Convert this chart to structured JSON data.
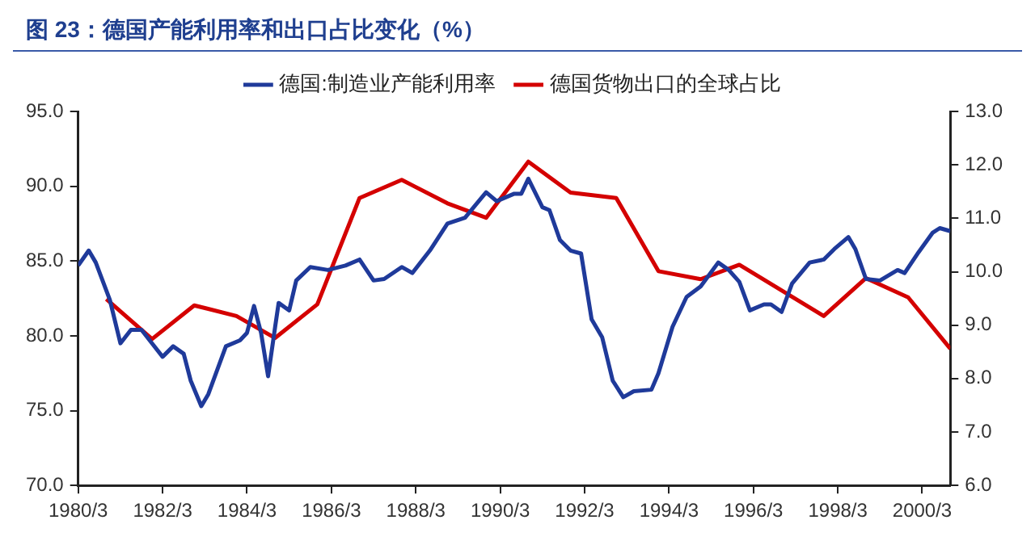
{
  "chart_data": {
    "type": "line",
    "title": "图 23：德国产能利用率和出口占比变化（%）",
    "series": [
      {
        "name": "德国:制造业产能利用率",
        "color": "#1f3a9a",
        "axis": "y",
        "x": [
          "1980-03",
          "1980-06",
          "1980-08",
          "1980-12",
          "1981-03",
          "1981-06",
          "1981-09",
          "1981-12",
          "1982-03",
          "1982-06",
          "1982-09",
          "1982-11",
          "1983-02",
          "1983-04",
          "1983-09",
          "1984-01",
          "1984-03",
          "1984-05",
          "1984-07",
          "1984-09",
          "1984-11",
          "1984-12",
          "1985-03",
          "1985-05",
          "1985-09",
          "1986-02",
          "1986-07",
          "1986-11",
          "1987-03",
          "1987-06",
          "1987-11",
          "1988-02",
          "1988-07",
          "1988-12",
          "1989-05",
          "1989-11",
          "1990-02",
          "1990-07",
          "1990-09",
          "1990-11",
          "1991-03",
          "1991-05",
          "1991-08",
          "1991-11",
          "1992-02",
          "1992-05",
          "1992-08",
          "1992-11",
          "1993-02",
          "1993-05",
          "1993-10",
          "1993-12",
          "1994-04",
          "1994-08",
          "1994-12",
          "1995-05",
          "1995-08",
          "1995-11",
          "1996-02",
          "1996-06",
          "1996-08",
          "1996-11",
          "1997-02",
          "1997-07",
          "1997-11",
          "1998-02",
          "1998-06",
          "1998-08",
          "1998-11",
          "1999-03",
          "1999-08",
          "1999-10",
          "2000-02",
          "2000-06",
          "2000-08",
          "2000-11"
        ],
        "values": [
          84.7,
          85.7,
          84.9,
          82.4,
          79.5,
          80.4,
          80.4,
          79.5,
          78.6,
          79.3,
          78.8,
          77.0,
          75.3,
          76.1,
          79.3,
          79.7,
          80.2,
          82.0,
          80.2,
          77.3,
          80.6,
          82.2,
          81.7,
          83.7,
          84.6,
          84.4,
          84.7,
          85.1,
          83.7,
          83.8,
          84.6,
          84.2,
          85.7,
          87.5,
          87.9,
          89.6,
          89.0,
          89.5,
          89.5,
          90.5,
          88.6,
          88.4,
          86.4,
          85.7,
          85.5,
          81.1,
          79.9,
          77.0,
          75.9,
          76.3,
          76.4,
          77.5,
          80.6,
          82.6,
          83.3,
          84.9,
          84.4,
          83.6,
          81.7,
          82.1,
          82.1,
          81.6,
          83.5,
          84.9,
          85.1,
          85.8,
          86.6,
          85.8,
          83.8,
          83.7,
          84.4,
          84.2,
          85.6,
          86.9,
          87.2,
          87.0
        ]
      },
      {
        "name": "德国货物出口的全球占比",
        "color": "#d40000",
        "axis": "y2",
        "x": [
          "1980-11",
          "1981-12",
          "1982-12",
          "1983-12",
          "1984-11",
          "1985-11",
          "1986-11",
          "1987-11",
          "1988-12",
          "1989-11",
          "1990-11",
          "1991-11",
          "1992-12",
          "1993-12",
          "1994-12",
          "1995-11",
          "1997-11",
          "1998-11",
          "1999-11",
          "2000-11"
        ],
        "values": [
          9.49,
          8.74,
          9.37,
          9.17,
          8.76,
          9.39,
          11.38,
          11.72,
          11.28,
          11.01,
          12.06,
          11.48,
          11.38,
          10.01,
          9.86,
          10.13,
          9.17,
          9.88,
          9.52,
          8.56
        ]
      }
    ],
    "xlim": [
      "1980-03",
      "2000-11"
    ],
    "xticks": [
      {
        "value": "1980-03",
        "label": "1980/3"
      },
      {
        "value": "1982-03",
        "label": "1982/3"
      },
      {
        "value": "1984-03",
        "label": "1984/3"
      },
      {
        "value": "1986-03",
        "label": "1986/3"
      },
      {
        "value": "1988-03",
        "label": "1988/3"
      },
      {
        "value": "1990-03",
        "label": "1990/3"
      },
      {
        "value": "1992-03",
        "label": "1992/3"
      },
      {
        "value": "1994-03",
        "label": "1994/3"
      },
      {
        "value": "1996-03",
        "label": "1996/3"
      },
      {
        "value": "1998-03",
        "label": "1998/3"
      },
      {
        "value": "2000-03",
        "label": "2000/3"
      }
    ],
    "ylim": [
      70,
      95
    ],
    "yticks": [
      {
        "value": 70,
        "label": "70.0"
      },
      {
        "value": 75,
        "label": "75.0"
      },
      {
        "value": 80,
        "label": "80.0"
      },
      {
        "value": 85,
        "label": "85.0"
      },
      {
        "value": 90,
        "label": "90.0"
      },
      {
        "value": 95,
        "label": "95.0"
      }
    ],
    "y2lim": [
      6,
      13
    ],
    "y2ticks": [
      {
        "value": 6,
        "label": "6.0"
      },
      {
        "value": 7,
        "label": "7.0"
      },
      {
        "value": 8,
        "label": "8.0"
      },
      {
        "value": 9,
        "label": "9.0"
      },
      {
        "value": 10,
        "label": "10.0"
      },
      {
        "value": 11,
        "label": "11.0"
      },
      {
        "value": 12,
        "label": "12.0"
      },
      {
        "value": 13,
        "label": "13.0"
      }
    ],
    "grid": false,
    "legend": "top",
    "marker": "none",
    "line_style": "solid"
  }
}
